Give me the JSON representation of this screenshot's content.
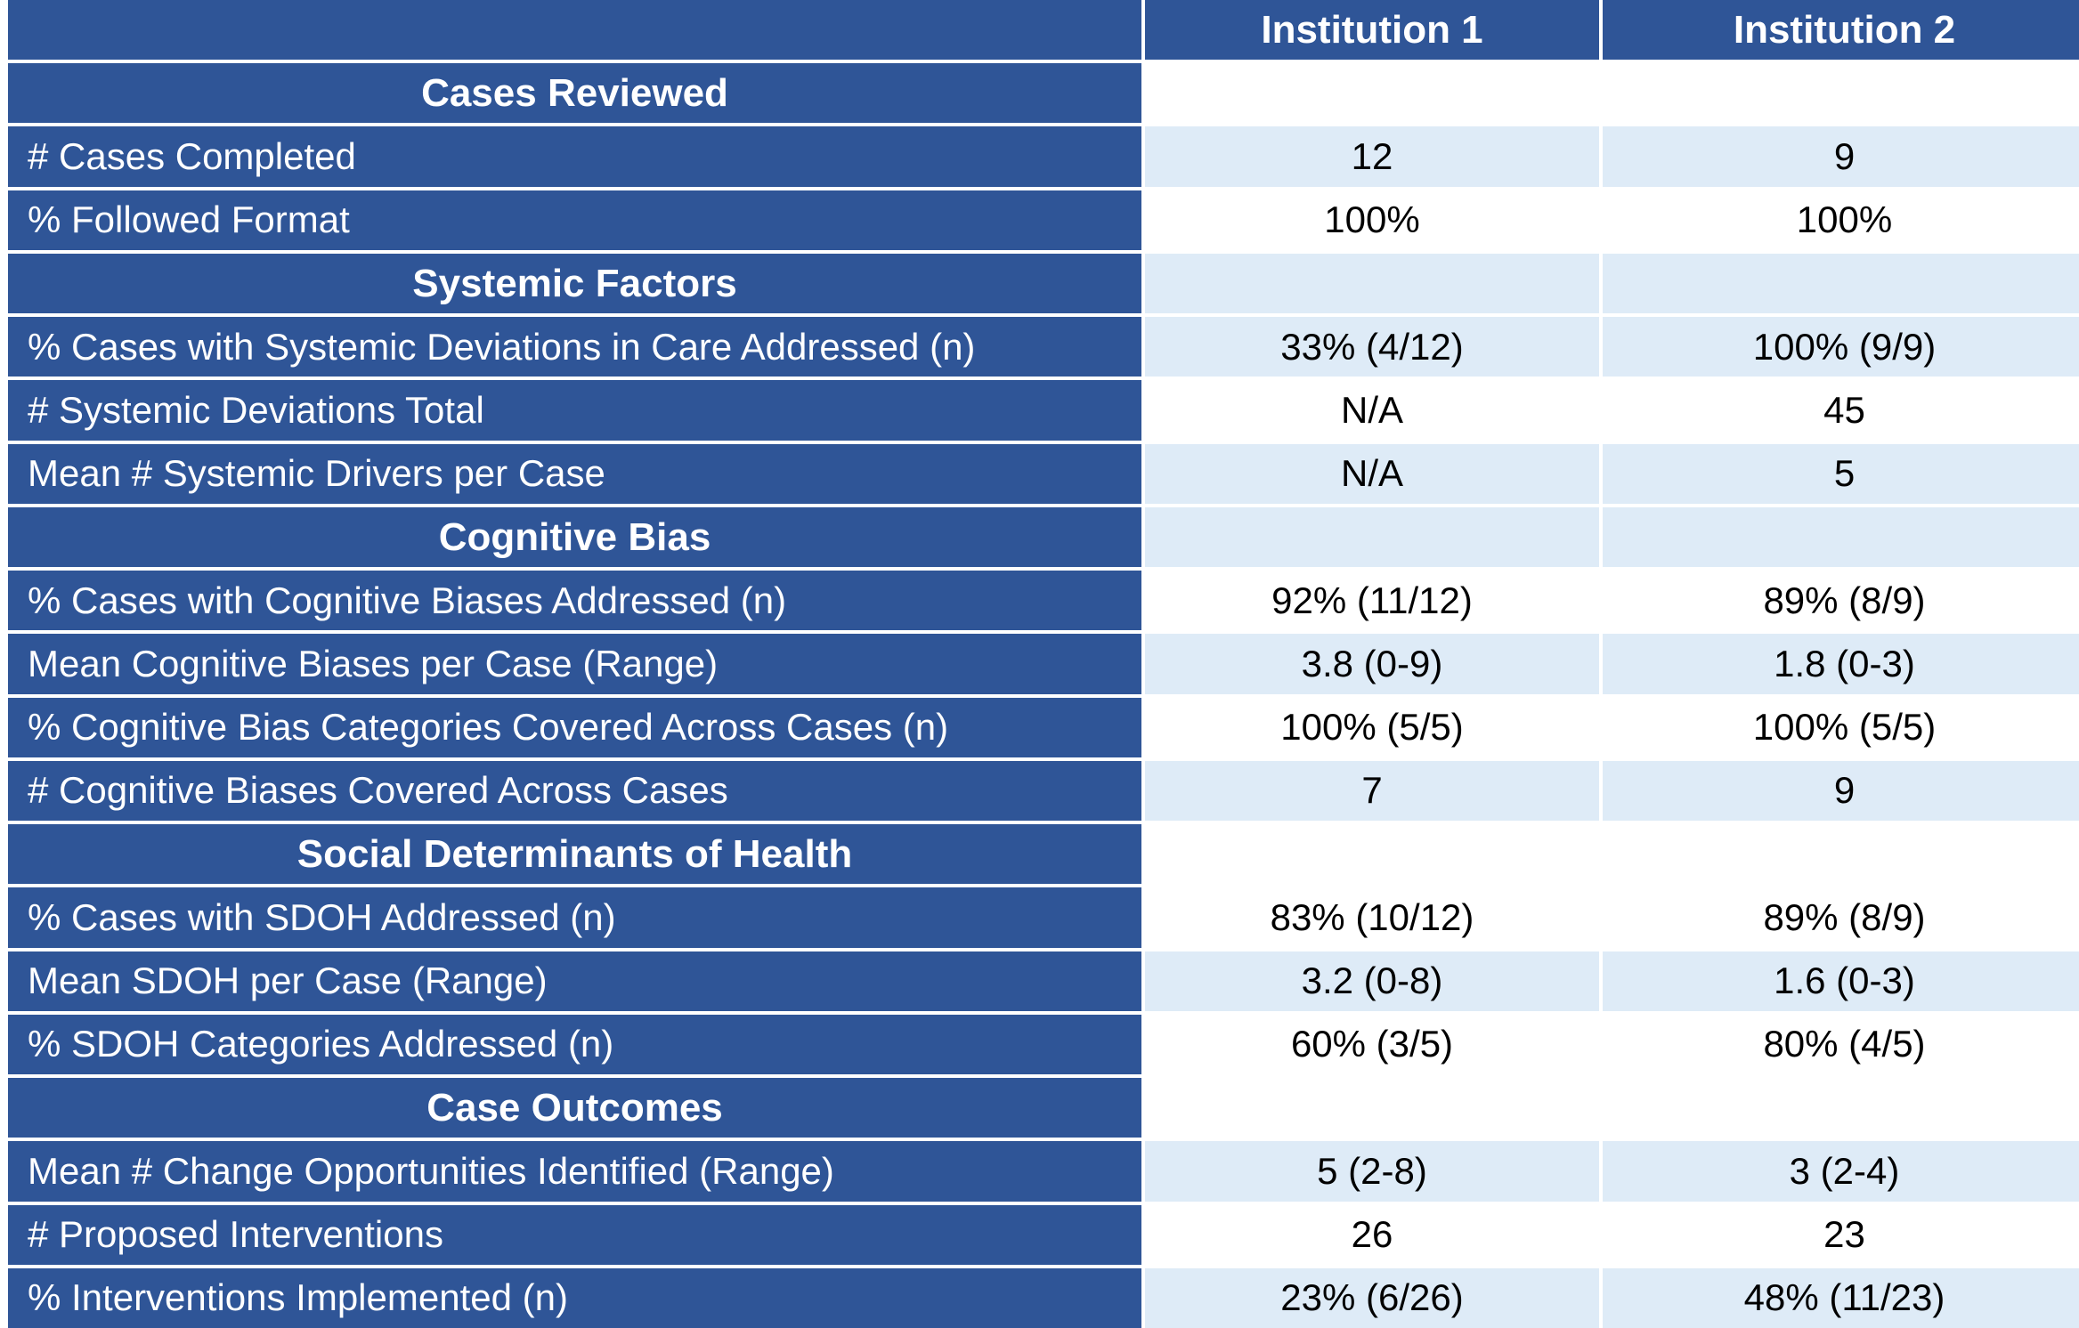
{
  "header": {
    "columns": [
      "Institution 1",
      "Institution 2"
    ]
  },
  "sections": [
    {
      "title": "Cases Reviewed",
      "title_fill": "white",
      "rows": [
        {
          "label": "# Cases Completed",
          "values": [
            "12",
            "9"
          ]
        },
        {
          "label": "% Followed Format",
          "values": [
            "100%",
            "100%"
          ]
        }
      ]
    },
    {
      "title": "Systemic Factors",
      "title_fill": "light",
      "rows": [
        {
          "label": "% Cases with Systemic Deviations in Care Addressed (n)",
          "values": [
            "33% (4/12)",
            "100% (9/9)"
          ]
        },
        {
          "label": "# Systemic Deviations Total",
          "values": [
            "N/A",
            "45"
          ]
        },
        {
          "label": "Mean # Systemic Drivers per Case",
          "values": [
            "N/A",
            "5"
          ]
        }
      ]
    },
    {
      "title": "Cognitive Bias",
      "title_fill": "light",
      "rows": [
        {
          "label": "% Cases with Cognitive Biases Addressed (n)",
          "values": [
            "92% (11/12)",
            "89% (8/9)"
          ]
        },
        {
          "label": "Mean Cognitive Biases per Case (Range)",
          "values": [
            "3.8 (0-9)",
            "1.8 (0-3)"
          ]
        },
        {
          "label": "% Cognitive Bias Categories Covered Across Cases (n)",
          "values": [
            "100% (5/5)",
            "100% (5/5)"
          ]
        },
        {
          "label": "# Cognitive Biases Covered Across Cases",
          "values": [
            "7",
            "9"
          ]
        }
      ]
    },
    {
      "title": "Social Determinants of Health",
      "title_fill": "white",
      "rows": [
        {
          "label": "% Cases with SDOH Addressed (n)",
          "values": [
            "83% (10/12)",
            "89% (8/9)"
          ]
        },
        {
          "label": "Mean SDOH per Case (Range)",
          "values": [
            "3.2 (0-8)",
            "1.6 (0-3)"
          ]
        },
        {
          "label": "% SDOH Categories Addressed (n)",
          "values": [
            "60% (3/5)",
            "80% (4/5)"
          ]
        }
      ]
    },
    {
      "title": "Case Outcomes",
      "title_fill": "white",
      "rows": [
        {
          "label": "Mean # Change Opportunities Identified (Range)",
          "values": [
            "5 (2-8)",
            "3 (2-4)"
          ]
        },
        {
          "label": "# Proposed Interventions",
          "values": [
            "26",
            "23"
          ]
        },
        {
          "label": "% Interventions Implemented (n)",
          "values": [
            "23% (6/26)",
            "48% (11/23)"
          ]
        }
      ]
    }
  ],
  "colors": {
    "header_bg": "#2f5597",
    "light_fill": "#deebf7",
    "white_fill": "#ffffff",
    "text_light": "#ffffff",
    "text_dark": "#000000"
  }
}
